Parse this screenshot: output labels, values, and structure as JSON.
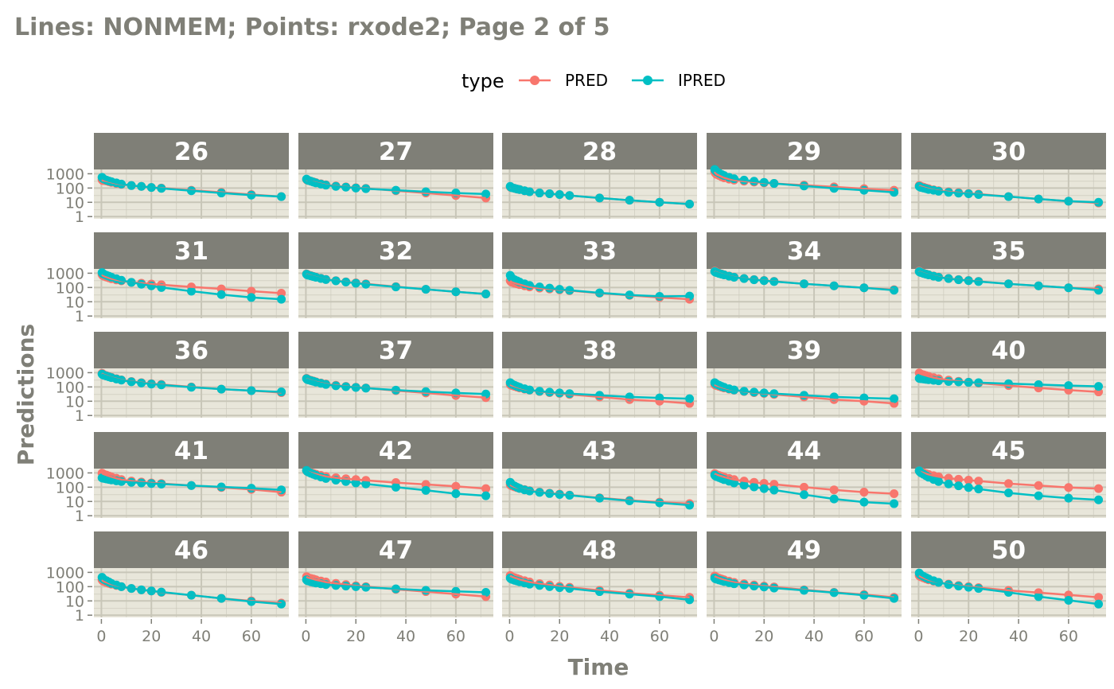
{
  "chart_data": {
    "type": "line",
    "title": "Lines: NONMEM; Points: rxode2; Page 2 of 5",
    "xlabel": "Time",
    "ylabel": "Predictions",
    "y_scale": "log10",
    "xlim": [
      -3,
      75
    ],
    "ylim": [
      0.7,
      2000
    ],
    "x_ticks": [
      0,
      20,
      40,
      60
    ],
    "y_ticks": [
      1,
      10,
      100,
      1000
    ],
    "legend": {
      "title": "type",
      "position": "top"
    },
    "colors": {
      "PRED": "#F8766D",
      "IPRED": "#00BFC4",
      "strip_bg": "#7f7f77",
      "panel_bg": "#e8e6da",
      "grid": "#c8c6b8"
    },
    "x": [
      0.25,
      0.5,
      1,
      2,
      3,
      4,
      6,
      8,
      12,
      16,
      20,
      24,
      36,
      48,
      60,
      72
    ],
    "panels": [
      {
        "id": "26",
        "pred": [
          380,
          340,
          330,
          310,
          280,
          250,
          210,
          180,
          150,
          130,
          110,
          100,
          70,
          50,
          35,
          25
        ],
        "ipred": [
          560,
          480,
          420,
          360,
          310,
          280,
          230,
          190,
          150,
          130,
          110,
          95,
          65,
          45,
          32,
          25
        ]
      },
      {
        "id": "27",
        "pred": [
          400,
          360,
          340,
          300,
          270,
          240,
          200,
          170,
          140,
          120,
          105,
          95,
          65,
          45,
          30,
          20
        ],
        "ipred": [
          420,
          380,
          340,
          300,
          260,
          230,
          190,
          160,
          130,
          115,
          100,
          90,
          70,
          55,
          45,
          38
        ]
      },
      {
        "id": "28",
        "pred": [
          120,
          110,
          105,
          95,
          85,
          78,
          65,
          55,
          45,
          40,
          35,
          30,
          20,
          14,
          10,
          7.5
        ],
        "ipred": [
          130,
          115,
          105,
          95,
          85,
          78,
          65,
          55,
          45,
          40,
          35,
          30,
          20,
          14,
          10,
          7.5
        ]
      },
      {
        "id": "29",
        "pred": [
          1400,
          1100,
          900,
          750,
          620,
          520,
          420,
          360,
          300,
          260,
          230,
          210,
          160,
          120,
          90,
          70
        ],
        "ipred": [
          2000,
          1700,
          1400,
          1100,
          900,
          750,
          560,
          450,
          360,
          300,
          250,
          210,
          140,
          95,
          70,
          50
        ]
      },
      {
        "id": "30",
        "pred": [
          150,
          140,
          130,
          115,
          100,
          90,
          75,
          65,
          55,
          48,
          42,
          38,
          25,
          17,
          12,
          9
        ],
        "ipred": [
          130,
          120,
          110,
          100,
          90,
          80,
          70,
          60,
          50,
          44,
          40,
          35,
          25,
          17,
          12,
          10
        ]
      },
      {
        "id": "31",
        "pred": [
          800,
          700,
          620,
          540,
          470,
          410,
          340,
          290,
          230,
          200,
          175,
          155,
          110,
          80,
          55,
          40
        ],
        "ipred": [
          1100,
          950,
          850,
          720,
          620,
          530,
          410,
          320,
          230,
          170,
          130,
          100,
          55,
          32,
          20,
          15
        ]
      },
      {
        "id": "32",
        "pred": [
          900,
          820,
          760,
          680,
          600,
          540,
          440,
          370,
          300,
          250,
          210,
          180,
          115,
          75,
          50,
          35
        ],
        "ipred": [
          850,
          780,
          720,
          650,
          580,
          520,
          430,
          360,
          290,
          240,
          200,
          170,
          110,
          75,
          50,
          35
        ]
      },
      {
        "id": "33",
        "pred": [
          300,
          260,
          230,
          200,
          180,
          160,
          130,
          110,
          90,
          78,
          68,
          60,
          40,
          28,
          20,
          15
        ],
        "ipred": [
          700,
          550,
          440,
          350,
          290,
          240,
          180,
          140,
          110,
          90,
          75,
          64,
          42,
          30,
          24,
          25
        ]
      },
      {
        "id": "34",
        "pred": [
          1400,
          1250,
          1150,
          1000,
          880,
          780,
          640,
          540,
          430,
          360,
          310,
          270,
          180,
          130,
          95,
          70
        ],
        "ipred": [
          1300,
          1200,
          1100,
          960,
          850,
          760,
          620,
          520,
          420,
          350,
          300,
          260,
          180,
          130,
          95,
          65
        ]
      },
      {
        "id": "35",
        "pred": [
          1400,
          1250,
          1150,
          1000,
          880,
          780,
          640,
          540,
          430,
          360,
          310,
          270,
          180,
          130,
          95,
          80
        ],
        "ipred": [
          1300,
          1200,
          1100,
          960,
          850,
          760,
          620,
          520,
          420,
          350,
          300,
          260,
          180,
          130,
          95,
          65
        ]
      },
      {
        "id": "36",
        "pred": [
          900,
          800,
          720,
          620,
          540,
          470,
          380,
          310,
          240,
          200,
          170,
          150,
          100,
          70,
          55,
          40
        ],
        "ipred": [
          800,
          720,
          660,
          580,
          510,
          450,
          360,
          300,
          230,
          190,
          160,
          140,
          95,
          70,
          55,
          45
        ]
      },
      {
        "id": "37",
        "pred": [
          400,
          360,
          330,
          290,
          260,
          230,
          190,
          160,
          130,
          110,
          95,
          85,
          55,
          38,
          25,
          18
        ],
        "ipred": [
          380,
          340,
          310,
          280,
          250,
          220,
          180,
          150,
          120,
          105,
          92,
          82,
          60,
          47,
          38,
          32
        ]
      },
      {
        "id": "38",
        "pred": [
          150,
          135,
          125,
          110,
          97,
          85,
          70,
          60,
          48,
          40,
          35,
          30,
          20,
          13,
          10,
          7
        ],
        "ipred": [
          200,
          175,
          155,
          130,
          110,
          95,
          75,
          62,
          50,
          43,
          38,
          34,
          26,
          20,
          17,
          15
        ]
      },
      {
        "id": "39",
        "pred": [
          150,
          135,
          125,
          110,
          97,
          85,
          70,
          60,
          48,
          40,
          35,
          30,
          20,
          13,
          10,
          7
        ],
        "ipred": [
          200,
          175,
          155,
          130,
          110,
          95,
          75,
          62,
          50,
          43,
          38,
          34,
          26,
          20,
          17,
          15
        ]
      },
      {
        "id": "40",
        "pred": [
          950,
          860,
          790,
          700,
          620,
          550,
          450,
          380,
          300,
          250,
          215,
          185,
          125,
          85,
          60,
          45
        ],
        "ipred": [
          400,
          390,
          380,
          360,
          340,
          320,
          290,
          270,
          240,
          225,
          210,
          200,
          170,
          145,
          125,
          110
        ]
      },
      {
        "id": "41",
        "pred": [
          950,
          880,
          800,
          700,
          610,
          530,
          420,
          340,
          270,
          230,
          200,
          180,
          130,
          95,
          70,
          45
        ],
        "ipred": [
          450,
          430,
          410,
          380,
          350,
          320,
          280,
          250,
          220,
          200,
          180,
          165,
          130,
          105,
          85,
          65
        ]
      },
      {
        "id": "42",
        "pred": [
          1400,
          1300,
          1200,
          1050,
          920,
          820,
          670,
          560,
          460,
          390,
          340,
          300,
          210,
          155,
          115,
          80
        ],
        "ipred": [
          1500,
          1300,
          1150,
          950,
          800,
          680,
          520,
          410,
          310,
          250,
          200,
          170,
          100,
          60,
          35,
          25
        ]
      },
      {
        "id": "43",
        "pred": [
          150,
          135,
          120,
          105,
          92,
          82,
          68,
          57,
          45,
          38,
          33,
          28,
          18,
          12,
          9,
          7
        ],
        "ipred": [
          220,
          180,
          150,
          120,
          98,
          82,
          65,
          54,
          43,
          36,
          31,
          27,
          17,
          11,
          8,
          5.5
        ]
      },
      {
        "id": "44",
        "pred": [
          900,
          820,
          750,
          660,
          580,
          510,
          410,
          340,
          270,
          220,
          185,
          160,
          100,
          65,
          45,
          35
        ],
        "ipred": [
          700,
          620,
          550,
          470,
          400,
          340,
          260,
          200,
          140,
          105,
          80,
          63,
          30,
          15,
          9,
          7
        ]
      },
      {
        "id": "45",
        "pred": [
          1400,
          1250,
          1150,
          1000,
          880,
          780,
          640,
          540,
          430,
          360,
          310,
          270,
          180,
          130,
          95,
          80
        ],
        "ipred": [
          1400,
          1200,
          1000,
          800,
          630,
          500,
          350,
          250,
          170,
          125,
          95,
          75,
          40,
          25,
          17,
          13
        ]
      },
      {
        "id": "46",
        "pred": [
          300,
          260,
          230,
          200,
          170,
          150,
          120,
          100,
          75,
          60,
          50,
          40,
          25,
          15,
          10,
          7
        ],
        "ipred": [
          450,
          380,
          320,
          260,
          210,
          170,
          130,
          100,
          75,
          60,
          50,
          42,
          25,
          15,
          9,
          6
        ]
      },
      {
        "id": "47",
        "pred": [
          500,
          460,
          420,
          380,
          340,
          300,
          250,
          210,
          170,
          140,
          115,
          100,
          65,
          45,
          30,
          20
        ],
        "ipred": [
          300,
          270,
          250,
          220,
          200,
          180,
          160,
          140,
          120,
          110,
          100,
          90,
          70,
          55,
          47,
          40
        ]
      },
      {
        "id": "48",
        "pred": [
          600,
          540,
          490,
          420,
          370,
          320,
          260,
          210,
          160,
          130,
          105,
          90,
          55,
          35,
          25,
          18
        ],
        "ipred": [
          400,
          360,
          320,
          280,
          250,
          220,
          180,
          150,
          120,
          100,
          85,
          75,
          45,
          30,
          20,
          12
        ]
      },
      {
        "id": "49",
        "pred": [
          550,
          500,
          450,
          390,
          340,
          300,
          240,
          200,
          160,
          130,
          110,
          95,
          60,
          40,
          28,
          18
        ],
        "ipred": [
          400,
          360,
          330,
          290,
          260,
          230,
          190,
          160,
          130,
          110,
          95,
          80,
          55,
          38,
          25,
          15
        ]
      },
      {
        "id": "50",
        "pred": [
          600,
          540,
          480,
          410,
          350,
          300,
          240,
          200,
          150,
          120,
          100,
          85,
          55,
          38,
          26,
          18
        ],
        "ipred": [
          900,
          760,
          640,
          520,
          420,
          350,
          260,
          200,
          140,
          110,
          90,
          75,
          40,
          20,
          11,
          6
        ]
      }
    ]
  }
}
